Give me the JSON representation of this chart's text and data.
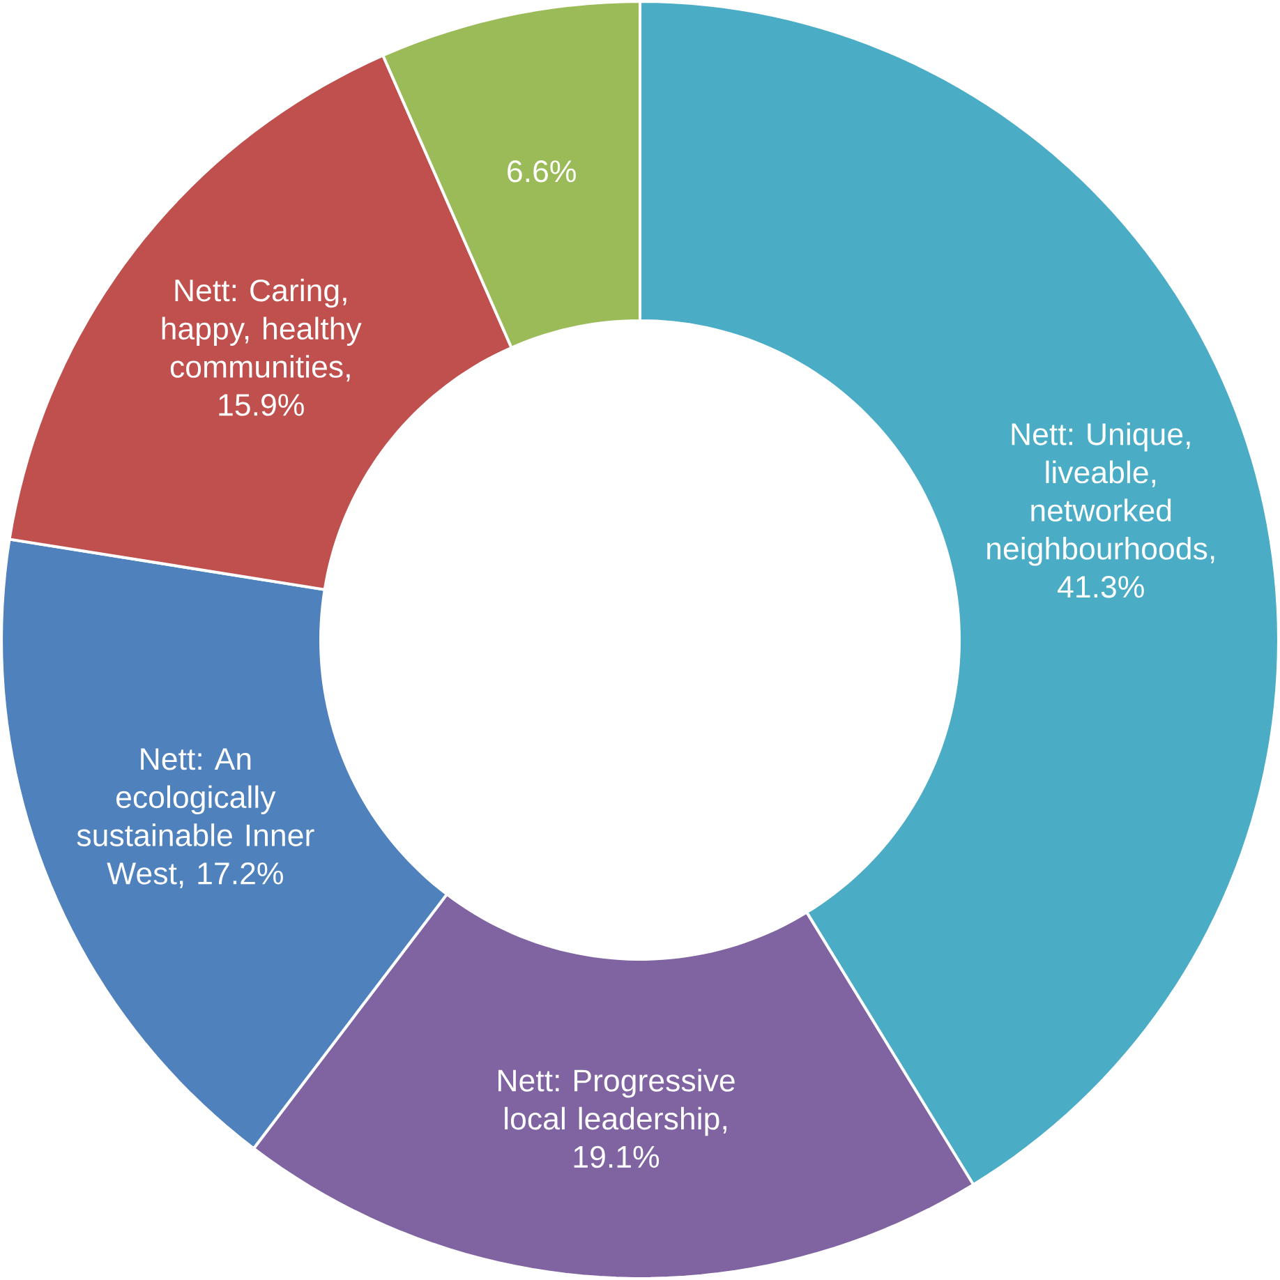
{
  "chart_data": {
    "type": "donut",
    "categories": [
      "Nett: Unique, liveable, networked neighbourhoods",
      "Nett: Progressive local leadership",
      "Nett: An ecologically sustainable Inner West",
      "Nett: Caring, happy, healthy communities",
      null
    ],
    "values": [
      41.3,
      19.1,
      17.2,
      15.9,
      6.6
    ],
    "colors": [
      "#4bacc6",
      "#8064a2",
      "#4f81bd",
      "#c0504d",
      "#9bbb59"
    ],
    "value_labels": [
      ", 41.3%",
      ", 19.1%",
      ", 17.2%",
      ", 15.9%",
      "6.6%"
    ]
  }
}
